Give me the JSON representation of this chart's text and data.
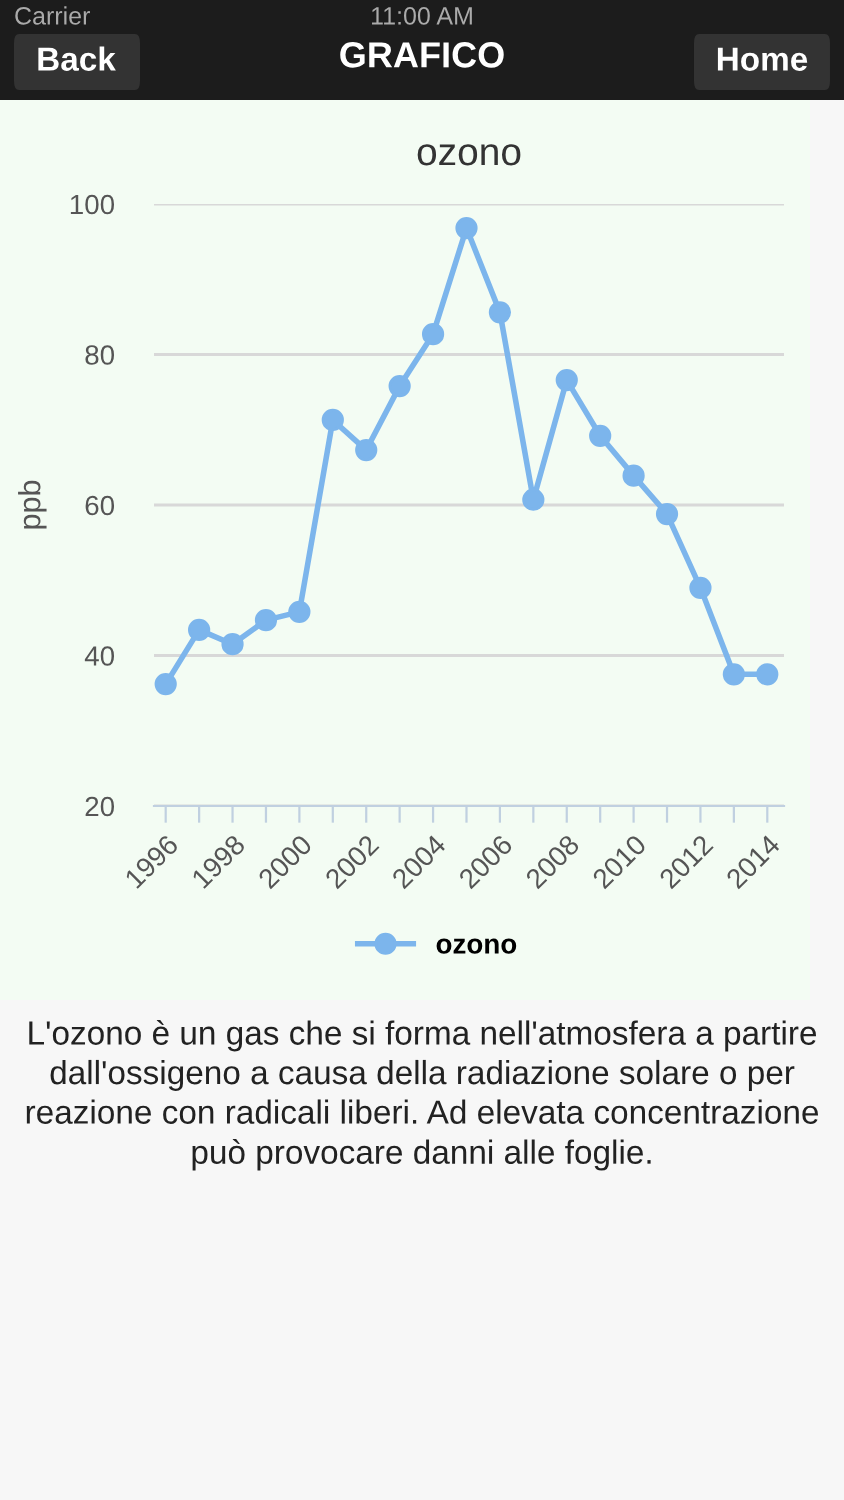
{
  "chart_data": {
    "type": "line",
    "title": "ozono",
    "ylabel": "ppb",
    "x": [
      1996,
      1997,
      1998,
      1999,
      2000,
      2001,
      2002,
      2003,
      2004,
      2005,
      2006,
      2007,
      2008,
      2009,
      2010,
      2011,
      2012,
      2013,
      2014
    ],
    "series": [
      {
        "name": "ozono",
        "color": "#7cb5ec",
        "values": [
          36.2,
          43.4,
          41.5,
          44.7,
          45.8,
          71.3,
          67.3,
          75.8,
          82.7,
          96.8,
          85.6,
          60.7,
          76.6,
          69.2,
          63.9,
          58.8,
          49.0,
          37.5,
          37.5
        ]
      }
    ],
    "xlim": [
      1995.65,
      2014.5
    ],
    "ylim": [
      20,
      100
    ],
    "xticks": [
      1996,
      {
        "value": 1997,
        "label": null
      },
      1998,
      {
        "value": 1999,
        "label": null
      },
      2000,
      {
        "value": 2001,
        "label": null
      },
      2002,
      {
        "value": 2003,
        "label": null
      },
      2004,
      {
        "value": 2005,
        "label": null
      },
      2006,
      {
        "value": 2007,
        "label": null
      },
      2008,
      {
        "value": 2009,
        "label": null
      },
      2010,
      {
        "value": 2011,
        "label": null
      },
      2012,
      {
        "value": 2013,
        "label": null
      },
      2014
    ],
    "yticks": [
      20,
      40,
      60,
      80,
      100
    ],
    "grid": "y",
    "legend": "bottom",
    "marker": "circle",
    "line_style": "solid",
    "annotations": [
      "Carrier",
      "11:00 AM",
      "Back",
      "GRAFICO",
      "Home",
      "L'ozono è un gas che si forma nell'atmosfera a partire dall'ossigeno a causa della radiazione solare o per reazione con radicali liberi. Ad elevata concentrazione può provocare danni alle foglie."
    ]
  }
}
